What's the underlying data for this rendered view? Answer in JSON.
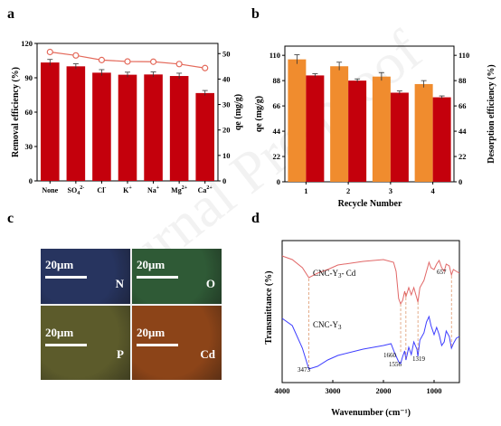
{
  "watermark": "Journal Pre-proof",
  "panels": {
    "a": {
      "letter": "a"
    },
    "b": {
      "letter": "b"
    },
    "c": {
      "letter": "c"
    },
    "d": {
      "letter": "d"
    }
  },
  "colors": {
    "bar_red": "#c4000c",
    "removal_line": "#e46a5b",
    "orange": "#f08c2e",
    "ftir_top": "#e16767",
    "ftir_bottom": "#3d3dff",
    "dash": "#d98a5a"
  },
  "chart_data": [
    {
      "type": "bar",
      "panel": "a",
      "categories": [
        "None",
        "SO4²⁻",
        "Cl⁻",
        "K⁺",
        "Na⁺",
        "Mg²⁺",
        "Ca²⁺"
      ],
      "series": [
        {
          "axis": "right",
          "values": [
            46.5,
            45.0,
            42.5,
            41.7,
            41.8,
            41.2,
            34.5
          ],
          "errors": [
            1.2,
            1.0,
            1.2,
            1.0,
            1.0,
            1.1,
            1.0
          ]
        },
        {
          "axis": "left",
          "kind": "line",
          "values": [
            112.5,
            109.5,
            105.5,
            104.2,
            104.0,
            102.0,
            98.5
          ]
        }
      ],
      "ylabel": "Removal efficiency (%)",
      "y2label": "qe (mg/g)",
      "ylim": [
        0,
        120
      ],
      "yticks": [
        "0",
        "30",
        "60",
        "90",
        "120"
      ],
      "y2lim": [
        0,
        54
      ],
      "y2ticks": [
        "0",
        "10",
        "20",
        "30",
        "40",
        "50"
      ],
      "xticklabels": [
        {
          "base": "None",
          "sup": ""
        },
        {
          "base": "SO",
          "sub": "4",
          "sup": "2-"
        },
        {
          "base": "Cl",
          "sup": "-"
        },
        {
          "base": "K",
          "sup": "+"
        },
        {
          "base": "Na",
          "sup": "+"
        },
        {
          "base": "Mg",
          "sup": "2+"
        },
        {
          "base": "Ca",
          "sup": "2+"
        }
      ]
    },
    {
      "type": "bar",
      "panel": "b",
      "categories": [
        "1",
        "2",
        "3",
        "4"
      ],
      "series": [
        {
          "axis": "left",
          "color": "orange",
          "values": [
            106.5,
            100.5,
            91.5,
            85.0
          ],
          "errors": [
            4.0,
            3.5,
            3.5,
            3.0
          ]
        },
        {
          "axis": "right",
          "color": "red",
          "values": [
            92.5,
            88.0,
            77.5,
            73.5
          ],
          "errors": [
            1.5,
            1.5,
            1.5,
            1.2
          ]
        }
      ],
      "xlabel": "Recycle Number",
      "ylabel": "qe (mg/g)",
      "y2label": "Desorption efficiency (%)",
      "ylim": [
        0,
        118
      ],
      "yticks": [
        "0",
        "22",
        "44",
        "66",
        "88",
        "110"
      ],
      "y2ticks": [
        "0",
        "22",
        "44",
        "66",
        "88",
        "110"
      ]
    },
    {
      "type": "line",
      "panel": "d",
      "xlabel": "Wavenumber (cm⁻¹)",
      "ylabel": "Transmittance (%)",
      "xlim": [
        4000,
        500
      ],
      "xticks": [
        "4000",
        "3000",
        "2000",
        "1000"
      ],
      "series": [
        {
          "name": "CNC-Y₃- Cd",
          "color": "ftir_top"
        },
        {
          "name": "CNC-Y₃",
          "color": "ftir_bottom"
        }
      ],
      "annotations": [
        "3473",
        "1660",
        "1556",
        "1319",
        "657"
      ],
      "series_labels": [
        "CNC-Y",
        "3",
        "- Cd",
        "CNC-Y",
        "3"
      ]
    }
  ],
  "micrographs": [
    {
      "scale": "20μm",
      "element": "N",
      "color": "#27345f"
    },
    {
      "scale": "20μm",
      "element": "O",
      "color": "#2f5a36"
    },
    {
      "scale": "20μm",
      "element": "P",
      "color": "#5c5b2b"
    },
    {
      "scale": "20μm",
      "element": "Cd",
      "color": "#8c4418"
    }
  ]
}
